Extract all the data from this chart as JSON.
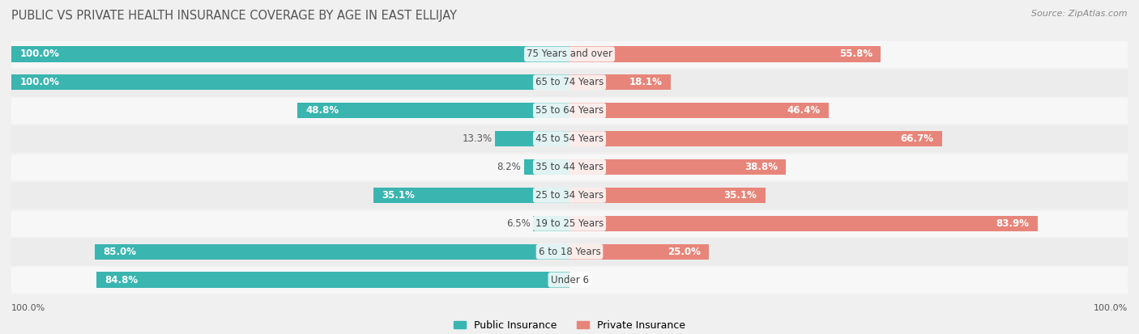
{
  "title": "PUBLIC VS PRIVATE HEALTH INSURANCE COVERAGE BY AGE IN EAST ELLIJAY",
  "source": "Source: ZipAtlas.com",
  "categories": [
    "Under 6",
    "6 to 18 Years",
    "19 to 25 Years",
    "25 to 34 Years",
    "35 to 44 Years",
    "45 to 54 Years",
    "55 to 64 Years",
    "65 to 74 Years",
    "75 Years and over"
  ],
  "public_values": [
    84.8,
    85.0,
    6.5,
    35.1,
    8.2,
    13.3,
    48.8,
    100.0,
    100.0
  ],
  "private_values": [
    0.0,
    25.0,
    83.9,
    35.1,
    38.8,
    66.7,
    46.4,
    18.1,
    55.8
  ],
  "public_color": "#3ab5b0",
  "private_color": "#e8857a",
  "bg_color": "#f0f0f0",
  "row_bg_light": "#f7f7f7",
  "row_bg_dark": "#ececec",
  "max_value": 100.0,
  "label_fontsize": 8.5,
  "title_fontsize": 10.5,
  "category_fontsize": 8.5,
  "legend_fontsize": 9,
  "axis_label_fontsize": 8
}
